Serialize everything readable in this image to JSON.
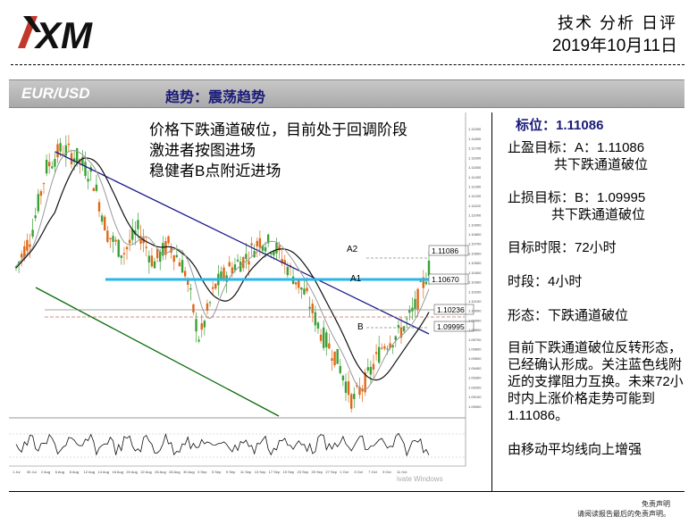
{
  "header": {
    "logo_text": "XM",
    "title": "技术 分析 日评",
    "date": "2019年10月11日"
  },
  "bar": {
    "symbol": "EUR/USD",
    "trend": "趋势：震荡趋势"
  },
  "chart_notes": {
    "line1": "价格下跌通道破位，目前处于回调阶段",
    "line2": "激进者按图进场",
    "line3": "稳健者B点附近进场"
  },
  "chart_labels": {
    "a2": "A2",
    "a1": "A1",
    "b": "B",
    "a2_price": "1.11086",
    "a1_price": "1.10670",
    "mid_price": "1.10236",
    "b_price": "1.09995",
    "watermark": "ivate Windows"
  },
  "chart_data": {
    "type": "line",
    "x_tick_labels": [
      "1 Jul",
      "30 Jul",
      "2 Aug",
      "6 Aug",
      "8 Aug",
      "12 Aug",
      "14 Aug",
      "16 Aug",
      "20 Aug",
      "22 Aug",
      "26 Aug",
      "28 Aug",
      "30 Aug",
      "3 Sep",
      "5 Sep",
      "9 Sep",
      "11 Sep",
      "13 Sep",
      "17 Sep",
      "19 Sep",
      "23 Sep",
      "25 Sep",
      "27 Sep",
      "1 Oct",
      "3 Oct",
      "7 Oct",
      "9 Oct",
      "11 Oct"
    ],
    "series": [
      {
        "values": [
          1.1045,
          1.108,
          1.115,
          1.117,
          1.116,
          1.114,
          1.108,
          1.106,
          1.1085,
          1.105,
          1.107,
          1.1045,
          1.097,
          1.1025,
          1.1045,
          1.1055,
          1.1075,
          1.1065,
          1.104,
          1.1015,
          1.0975,
          1.095,
          1.0905,
          1.093,
          1.0965,
          1.0975,
          1.1,
          1.1045
        ]
      }
    ],
    "levels": [
      {
        "name": "A2",
        "value": 1.11086
      },
      {
        "name": "A1",
        "value": 1.1067
      },
      {
        "name": "",
        "value": 1.10236
      },
      {
        "name": "B",
        "value": 1.09995
      }
    ]
  },
  "right_panel": {
    "target_label": "标位：",
    "target_value": "1.11086",
    "tp_line1": "止盈目标：A：1.11086",
    "tp_line2": "共下跌通道破位",
    "sl_line1": "止损目标：B：1.09995",
    "sl_line2": "共下跌通道破位",
    "time_limit": "目标时限：72小时",
    "timeframe": "时段：4小时",
    "pattern": "形态：下跌通道破位",
    "analysis": [
      "目前下跌通道破位反转形态，",
      "已经确认形成。关注蓝色线附",
      "近的支撑阻力互换。未来72小",
      "时内上涨价格走势可能到",
      "1.11086。"
    ],
    "ma_note": "由移动平均线向上增强"
  },
  "footer": {
    "line1": "免责声明",
    "line2": "请阅读报告最后的免责声明。"
  },
  "colors": {
    "channel_upper": "#1a1a8a",
    "channel_lower": "#0a6a0a",
    "level_blue": "#29b6e8",
    "candle_up": "#3aa035",
    "candle_down": "#e06818",
    "accent_text": "#1a1a7a"
  }
}
